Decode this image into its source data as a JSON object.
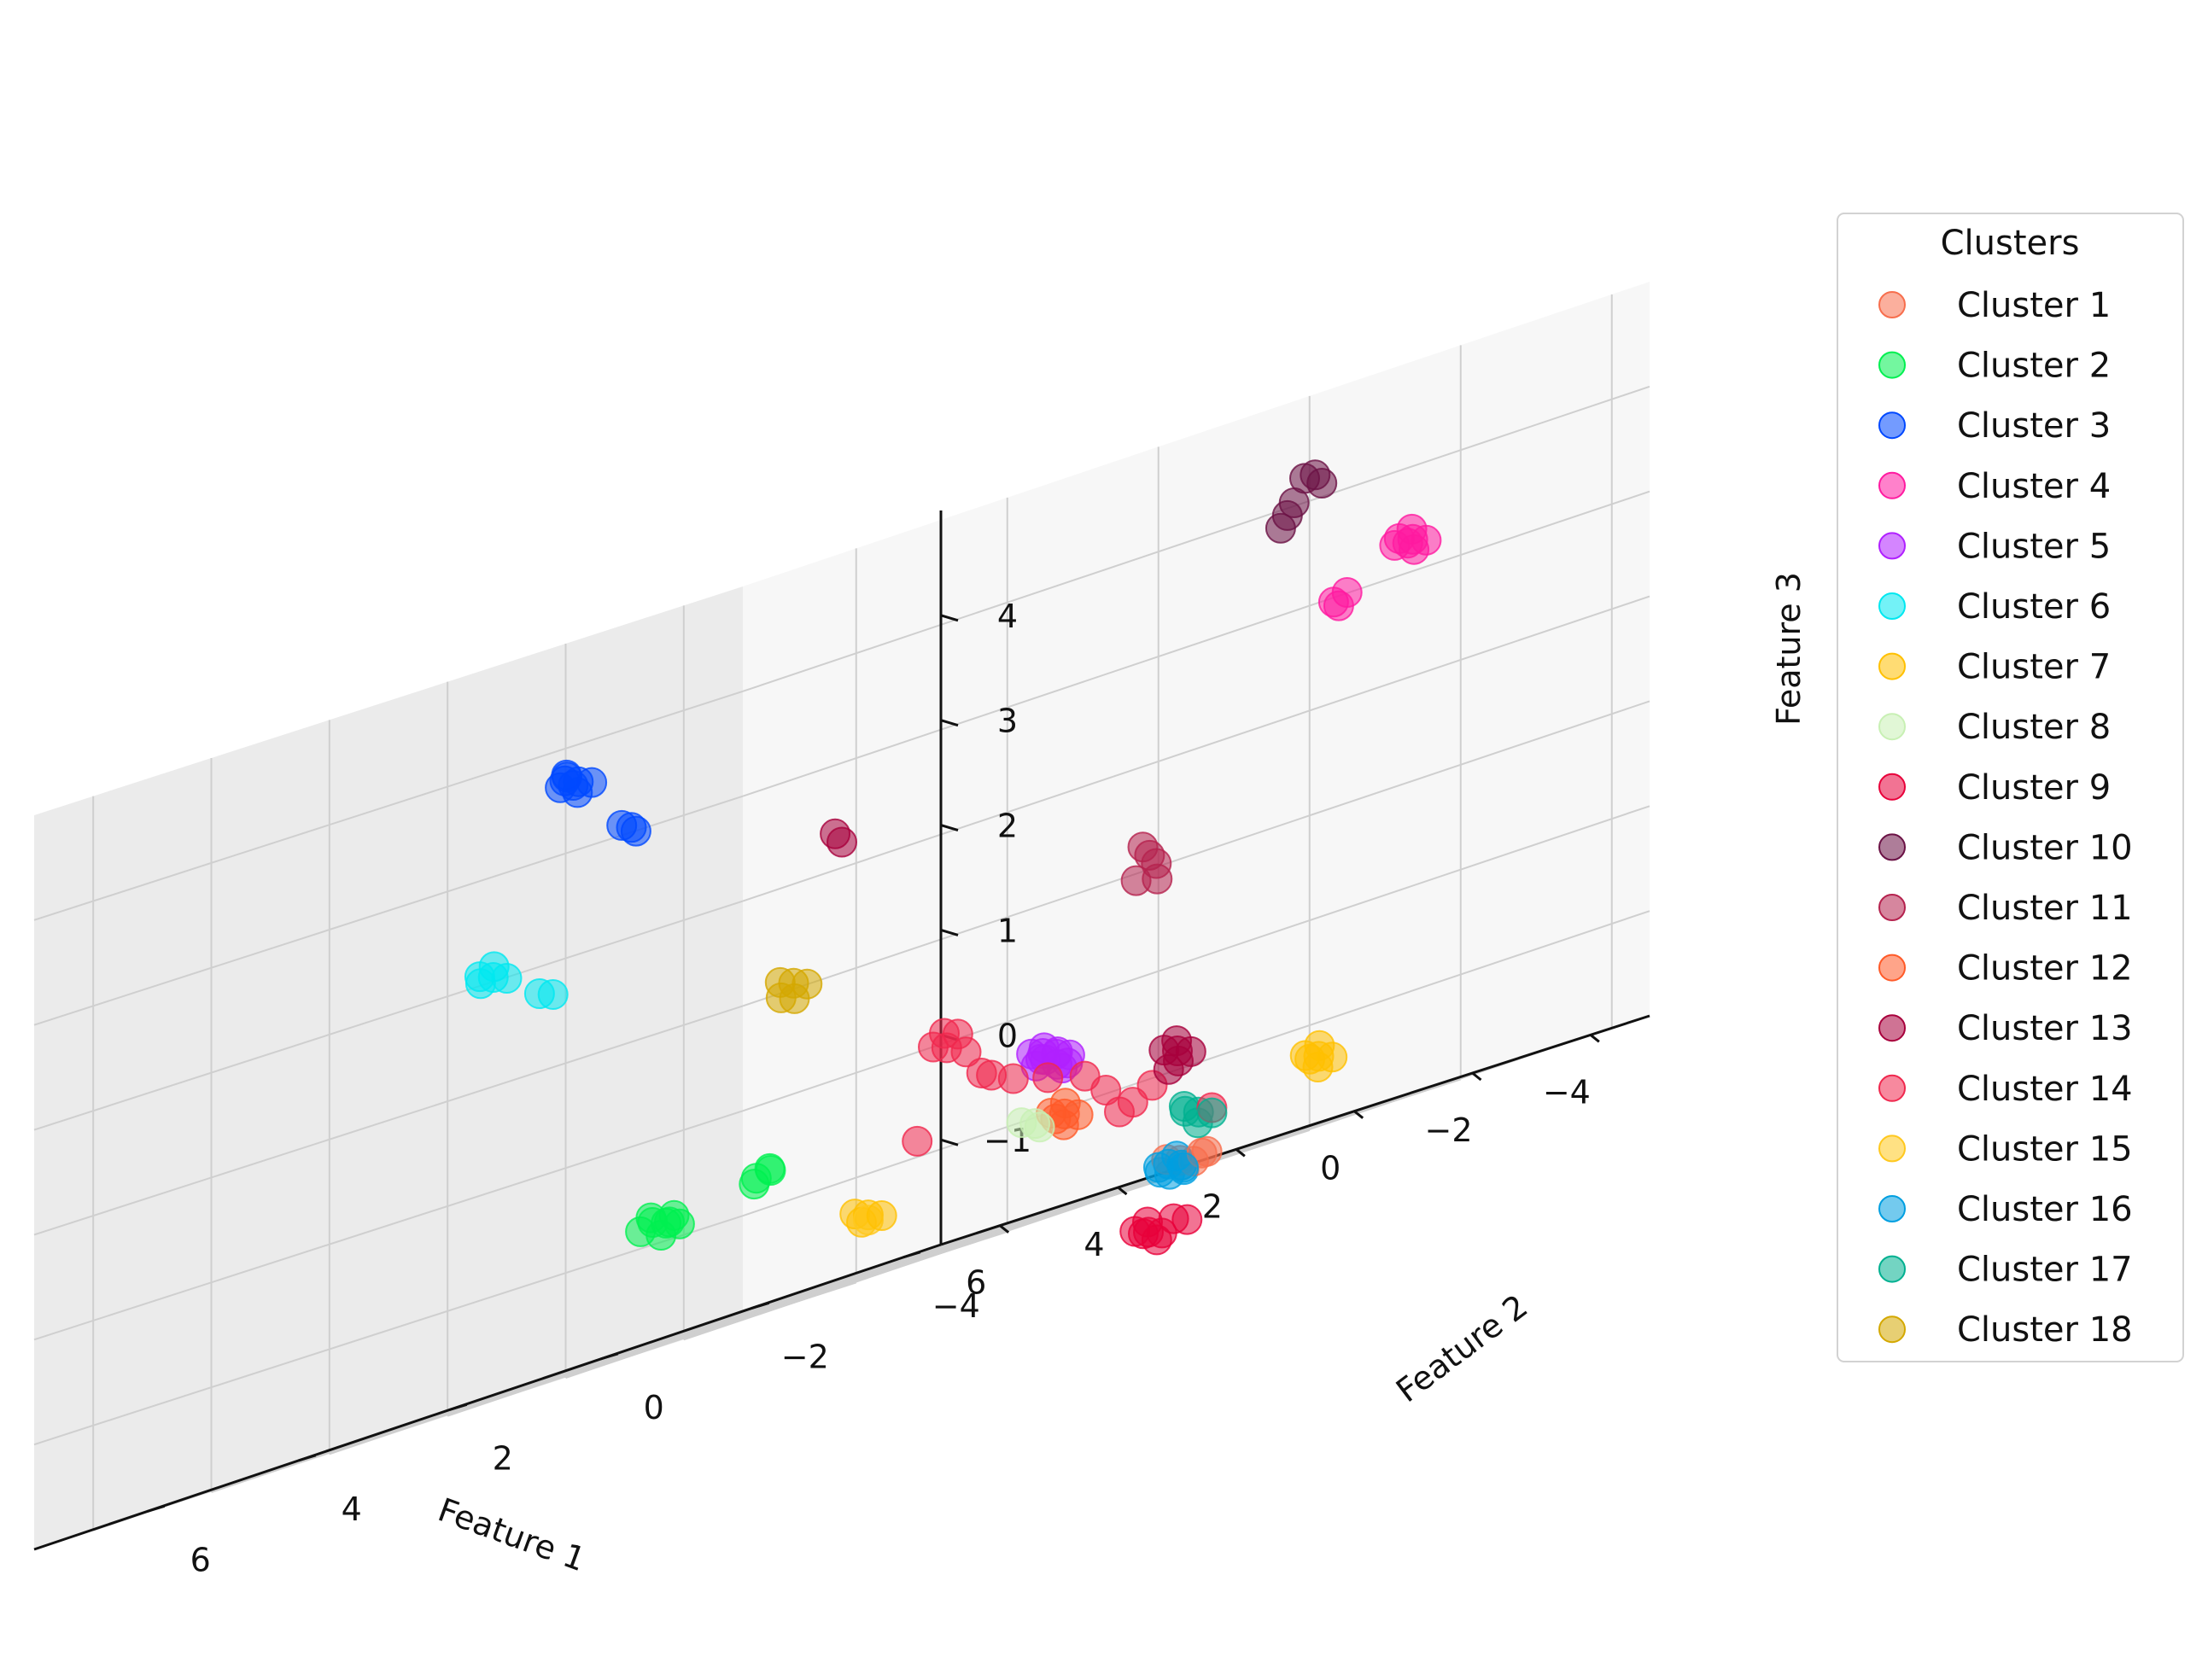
{
  "chart_data": {
    "type": "scatter3d",
    "title": "",
    "xlabel": "Feature 1",
    "ylabel": "Feature 2",
    "zlabel": "Feature 3",
    "xlim": [
      -5,
      7
    ],
    "ylim": [
      -4.5,
      7.5
    ],
    "zlim": [
      -2,
      5
    ],
    "xticks": [
      -4,
      -2,
      0,
      2,
      4,
      6
    ],
    "yticks": [
      -4,
      -2,
      0,
      2,
      4,
      6
    ],
    "zticks": [
      -1,
      0,
      1,
      2,
      3,
      4
    ],
    "grid": true,
    "legend": {
      "title": "Clusters",
      "position": "right"
    },
    "series": [
      {
        "name": "Cluster 1",
        "color": "#f76e4d",
        "points": [
          [
            -1.5,
            -1.2,
            -1.95
          ],
          [
            -1.4,
            -1.1,
            -1.9
          ],
          [
            -1.6,
            -1.3,
            -1.9
          ],
          [
            -1.3,
            -1.0,
            -1.85
          ],
          [
            -1.55,
            -1.0,
            -1.95
          ],
          [
            -1.45,
            -1.35,
            -1.9
          ]
        ]
      },
      {
        "name": "Cluster 2",
        "color": "#00f050",
        "points": [
          [
            5.0,
            0.7,
            -0.9
          ],
          [
            5.1,
            0.8,
            -0.85
          ],
          [
            4.9,
            0.6,
            -0.95
          ],
          [
            5.2,
            0.5,
            -0.9
          ],
          [
            5.0,
            0.9,
            -0.8
          ],
          [
            4.8,
            0.75,
            -0.85
          ],
          [
            5.15,
            0.65,
            -1.0
          ],
          [
            5.05,
            1.0,
            -0.9
          ],
          [
            3.5,
            0.5,
            -0.7
          ],
          [
            3.6,
            0.6,
            -0.75
          ],
          [
            3.7,
            0.55,
            -0.8
          ],
          [
            3.55,
            0.45,
            -0.72
          ]
        ]
      },
      {
        "name": "Cluster 3",
        "color": "#0048ff",
        "points": [
          [
            3.8,
            2.8,
            3.6
          ],
          [
            3.9,
            2.9,
            3.65
          ],
          [
            3.7,
            2.7,
            3.55
          ],
          [
            4.0,
            2.8,
            3.7
          ],
          [
            3.85,
            3.0,
            3.6
          ],
          [
            3.75,
            2.85,
            3.5
          ],
          [
            3.95,
            2.75,
            3.58
          ],
          [
            3.8,
            2.95,
            3.68
          ],
          [
            2.9,
            2.8,
            3.0
          ],
          [
            3.0,
            2.85,
            3.05
          ],
          [
            2.95,
            2.7,
            2.95
          ]
        ]
      },
      {
        "name": "Cluster 4",
        "color": "#ff1aa0",
        "points": [
          [
            -4.7,
            -1.6,
            3.3
          ],
          [
            -4.6,
            -1.5,
            3.35
          ],
          [
            -4.8,
            -1.7,
            3.25
          ],
          [
            -4.65,
            -1.4,
            3.3
          ],
          [
            -4.75,
            -1.55,
            3.4
          ],
          [
            -4.55,
            -1.65,
            3.28
          ],
          [
            -4.85,
            -1.5,
            3.2
          ],
          [
            -4.1,
            -1.2,
            3.0
          ],
          [
            -4.0,
            -1.1,
            2.95
          ],
          [
            -4.15,
            -1.05,
            2.9
          ]
        ]
      },
      {
        "name": "Cluster 5",
        "color": "#b020ff",
        "points": [
          [
            -0.2,
            -0.4,
            -0.5
          ],
          [
            -0.1,
            -0.3,
            -0.45
          ],
          [
            -0.3,
            -0.5,
            -0.55
          ],
          [
            0.0,
            -0.35,
            -0.5
          ],
          [
            -0.25,
            -0.2,
            -0.4
          ],
          [
            -0.15,
            -0.45,
            -0.6
          ],
          [
            -0.05,
            -0.25,
            -0.55
          ],
          [
            -0.35,
            -0.3,
            -0.48
          ],
          [
            -0.2,
            -0.55,
            -0.62
          ],
          [
            -0.1,
            -0.15,
            -0.42
          ],
          [
            -0.3,
            -0.4,
            -0.65
          ],
          [
            0.05,
            -0.45,
            -0.52
          ]
        ]
      },
      {
        "name": "Cluster 6",
        "color": "#00e8f0",
        "points": [
          [
            4.6,
            3.3,
            2.0
          ],
          [
            4.7,
            3.4,
            2.05
          ],
          [
            4.5,
            3.2,
            1.95
          ],
          [
            4.65,
            3.25,
            2.1
          ],
          [
            4.75,
            3.35,
            1.98
          ],
          [
            4.2,
            3.0,
            1.7
          ],
          [
            4.1,
            2.9,
            1.65
          ]
        ]
      },
      {
        "name": "Cluster 7",
        "color": "#ffc000",
        "points": [
          [
            -1.7,
            -2.7,
            -1.35
          ],
          [
            -1.6,
            -2.6,
            -1.3
          ],
          [
            -1.8,
            -2.8,
            -1.4
          ],
          [
            -1.65,
            -2.75,
            -1.25
          ],
          [
            -1.75,
            -2.65,
            -1.45
          ],
          [
            -1.55,
            -2.7,
            -1.35
          ],
          [
            2.6,
            -0.1,
            -1.45
          ],
          [
            2.7,
            0.0,
            -1.4
          ],
          [
            2.5,
            -0.2,
            -1.5
          ],
          [
            2.65,
            -0.05,
            -1.5
          ]
        ]
      },
      {
        "name": "Cluster 8",
        "color": "#c8f0b4",
        "points": [
          [
            0.8,
            -0.9,
            -1.1
          ],
          [
            0.9,
            -0.8,
            -1.05
          ],
          [
            0.85,
            -1.0,
            -1.15
          ]
        ]
      },
      {
        "name": "Cluster 9",
        "color": "#e8003a",
        "points": [
          [
            0.8,
            -2.4,
            -2.5
          ],
          [
            0.9,
            -2.3,
            -2.45
          ],
          [
            0.7,
            -2.5,
            -2.55
          ],
          [
            0.95,
            -2.45,
            -2.5
          ],
          [
            0.75,
            -2.35,
            -2.4
          ],
          [
            0.85,
            -2.55,
            -2.6
          ],
          [
            0.4,
            -2.6,
            -2.5
          ],
          [
            0.5,
            -2.5,
            -2.45
          ]
        ]
      },
      {
        "name": "Cluster 10",
        "color": "#6b1245",
        "points": [
          [
            -1.0,
            -3.2,
            4.2
          ],
          [
            -0.95,
            -3.1,
            4.2
          ],
          [
            -1.05,
            -3.25,
            4.1
          ],
          [
            -0.9,
            -3.0,
            4.0
          ],
          [
            -0.85,
            -2.95,
            3.9
          ],
          [
            -0.8,
            -2.9,
            3.8
          ]
        ]
      },
      {
        "name": "Cluster 11",
        "color": "#b5224e",
        "points": [
          [
            -0.5,
            -1.4,
            1.1
          ],
          [
            -0.45,
            -1.35,
            1.2
          ],
          [
            -0.55,
            -1.45,
            1.0
          ],
          [
            -0.4,
            -1.3,
            0.9
          ],
          [
            -0.5,
            -1.5,
            0.85
          ]
        ]
      },
      {
        "name": "Cluster 12",
        "color": "#ff5a28",
        "points": [
          [
            0.3,
            -0.9,
            -1.1
          ],
          [
            0.4,
            -0.8,
            -1.05
          ],
          [
            0.2,
            -1.0,
            -1.15
          ],
          [
            0.35,
            -0.95,
            -1.0
          ],
          [
            0.25,
            -0.85,
            -1.2
          ],
          [
            0.45,
            -0.9,
            -1.12
          ]
        ]
      },
      {
        "name": "Cluster 13",
        "color": "#a8003c",
        "points": [
          [
            -1.1,
            -1.3,
            -0.85
          ],
          [
            -1.0,
            -1.2,
            -0.8
          ],
          [
            -1.2,
            -1.4,
            -0.9
          ],
          [
            -1.05,
            -1.35,
            -0.95
          ],
          [
            -1.15,
            -1.25,
            -0.75
          ],
          [
            -0.95,
            -1.3,
            -1.0
          ],
          [
            1.0,
            1.5,
            2.2
          ],
          [
            1.05,
            1.55,
            2.3
          ]
        ]
      },
      {
        "name": "Cluster 14",
        "color": "#f0284e",
        "points": [
          [
            -0.6,
            -1.1,
            -1.2
          ],
          [
            -0.5,
            -1.0,
            -1.25
          ],
          [
            -0.4,
            -0.9,
            -1.0
          ],
          [
            -0.3,
            -0.7,
            -0.8
          ],
          [
            -0.8,
            -1.2,
            -1.1
          ],
          [
            0.2,
            -0.6,
            -0.7
          ],
          [
            0.4,
            -0.3,
            -0.6
          ],
          [
            0.7,
            0.2,
            0.0
          ],
          [
            0.8,
            0.3,
            0.05
          ],
          [
            1.4,
            -0.2,
            -0.1
          ],
          [
            1.5,
            -0.1,
            -0.05
          ],
          [
            1.2,
            -0.3,
            -0.2
          ],
          [
            0.9,
            -0.4,
            -0.5
          ],
          [
            1.0,
            -0.35,
            -0.45
          ],
          [
            1.9,
            -0.2,
            -0.9
          ],
          [
            -1.3,
            -1.6,
            -1.5
          ]
        ]
      },
      {
        "name": "Cluster 15",
        "color": "#ffc81e",
        "points": [
          [
            2.6,
            -0.1,
            -1.5
          ]
        ]
      },
      {
        "name": "Cluster 16",
        "color": "#009fe0",
        "points": [
          [
            -1.3,
            -1.2,
            -1.95
          ],
          [
            -1.2,
            -1.1,
            -1.9
          ],
          [
            -1.35,
            -1.0,
            -2.0
          ],
          [
            -1.15,
            -1.25,
            -1.85
          ],
          [
            -1.25,
            -0.95,
            -1.95
          ],
          [
            -1.1,
            -1.05,
            -1.9
          ],
          [
            -1.4,
            -1.15,
            -2.0
          ],
          [
            -1.2,
            -1.3,
            -1.98
          ]
        ]
      },
      {
        "name": "Cluster 17",
        "color": "#00b090",
        "points": [
          [
            -1.2,
            -1.5,
            -1.5
          ],
          [
            -1.1,
            -1.4,
            -1.45
          ],
          [
            -1.3,
            -1.6,
            -1.55
          ],
          [
            -1.15,
            -1.35,
            -1.4
          ],
          [
            -1.25,
            -1.45,
            -1.6
          ]
        ]
      },
      {
        "name": "Cluster 18",
        "color": "#d4a800",
        "points": [
          [
            2.2,
            1.2,
            1.0
          ],
          [
            2.3,
            1.3,
            1.05
          ],
          [
            2.1,
            1.1,
            0.95
          ],
          [
            2.25,
            1.15,
            0.85
          ],
          [
            2.35,
            1.25,
            0.9
          ]
        ]
      }
    ]
  }
}
